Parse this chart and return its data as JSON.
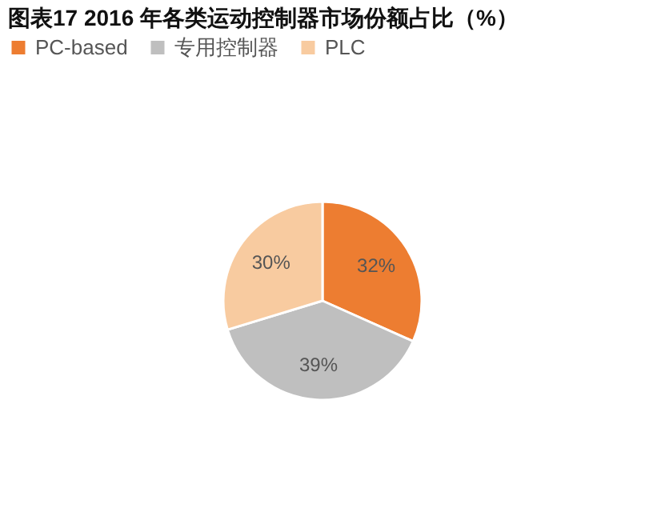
{
  "chart_data": {
    "type": "pie",
    "title": "图表17  2016 年各类运动控制器市场份额占比（%）",
    "categories": [
      "PC-based",
      "专用控制器",
      "PLC"
    ],
    "values": [
      32,
      39,
      30
    ],
    "colors": [
      "#ed7d31",
      "#bfbfbf",
      "#f8cba0"
    ],
    "value_labels": [
      "32%",
      "39%",
      "30%"
    ],
    "legend": "top"
  }
}
